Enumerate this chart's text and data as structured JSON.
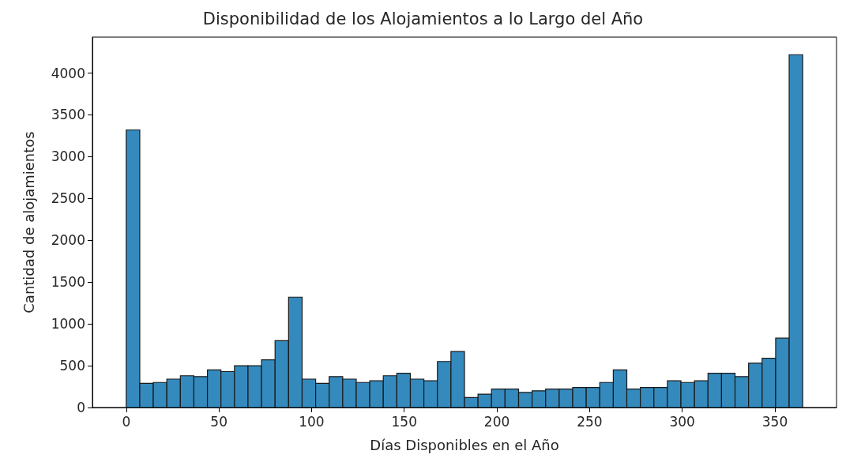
{
  "chart_data": {
    "type": "histogram",
    "title": "Disponibilidad de los Alojamientos a lo Largo del Año",
    "xlabel": "Días Disponibles en el Año",
    "ylabel": "Cantidad de alojamientos",
    "bins": [
      0,
      7.3,
      14.6,
      21.9,
      29.2,
      36.5,
      43.8,
      51.1,
      58.4,
      65.7,
      73,
      80.3,
      87.6,
      94.9,
      102.2,
      109.5,
      116.8,
      124.1,
      131.4,
      138.7,
      146,
      153.3,
      160.6,
      167.9,
      175.2,
      182.5,
      189.8,
      197.1,
      204.4,
      211.7,
      219,
      226.3,
      233.6,
      240.9,
      248.2,
      255.5,
      262.8,
      270.1,
      277.4,
      284.7,
      292,
      299.3,
      306.6,
      313.9,
      321.2,
      328.5,
      335.8,
      343.1,
      350.4,
      357.7,
      365
    ],
    "values": [
      3320,
      290,
      300,
      340,
      380,
      370,
      450,
      430,
      500,
      500,
      570,
      800,
      1320,
      340,
      290,
      370,
      340,
      300,
      320,
      380,
      410,
      340,
      320,
      550,
      670,
      120,
      160,
      220,
      220,
      180,
      200,
      220,
      220,
      240,
      240,
      300,
      450,
      220,
      240,
      240,
      320,
      300,
      320,
      410,
      410,
      370,
      530,
      590,
      830,
      4220
    ],
    "color": "#348abd",
    "xlim": [
      -18.25,
      383.25
    ],
    "xticks": [
      0,
      50,
      100,
      150,
      200,
      250,
      300,
      350
    ],
    "ylim": [
      0,
      4430
    ],
    "yticks": [
      0,
      500,
      1000,
      1500,
      2000,
      2500,
      3000,
      3500,
      4000
    ]
  }
}
